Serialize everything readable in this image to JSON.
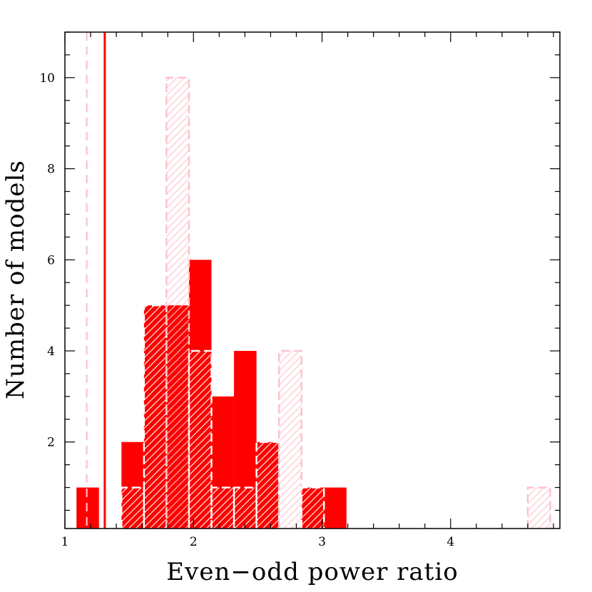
{
  "chart_data": {
    "type": "bar",
    "title": "",
    "xlabel": "Even−odd power ratio",
    "ylabel": "Number of models",
    "xlim": [
      1.0,
      4.85
    ],
    "ylim": [
      0.1,
      11.0
    ],
    "x_ticks": [
      1,
      2,
      3,
      4
    ],
    "y_ticks": [
      2,
      4,
      6,
      8,
      10
    ],
    "grid": false,
    "legend": "none",
    "colors": {
      "solid": "#ff0000",
      "hatched": "#ffc0cb",
      "hatched_overlay": "#ffffff"
    },
    "vlines": [
      {
        "x": 1.17,
        "style": "dashed",
        "color": "#ffc0cb"
      },
      {
        "x": 1.31,
        "style": "solid",
        "color": "#ff0000"
      }
    ],
    "series": [
      {
        "style": "solid",
        "bins": [
          {
            "x0": 1.09,
            "x1": 1.265,
            "value": 1
          },
          {
            "x0": 1.44,
            "x1": 1.615,
            "value": 2
          },
          {
            "x0": 1.615,
            "x1": 1.79,
            "value": 5
          },
          {
            "x0": 1.79,
            "x1": 1.965,
            "value": 5
          },
          {
            "x0": 1.965,
            "x1": 2.14,
            "value": 6
          },
          {
            "x0": 2.14,
            "x1": 2.315,
            "value": 3
          },
          {
            "x0": 2.315,
            "x1": 2.49,
            "value": 4
          },
          {
            "x0": 2.49,
            "x1": 2.665,
            "value": 2
          },
          {
            "x0": 2.84,
            "x1": 3.015,
            "value": 1
          },
          {
            "x0": 3.015,
            "x1": 3.19,
            "value": 1
          }
        ]
      },
      {
        "style": "hatched-dashed",
        "bins": [
          {
            "x0": 1.44,
            "x1": 1.615,
            "value": 1
          },
          {
            "x0": 1.615,
            "x1": 1.79,
            "value": 5
          },
          {
            "x0": 1.79,
            "x1": 1.965,
            "value": 10
          },
          {
            "x0": 1.965,
            "x1": 2.14,
            "value": 4
          },
          {
            "x0": 2.14,
            "x1": 2.315,
            "value": 1
          },
          {
            "x0": 2.315,
            "x1": 2.49,
            "value": 1
          },
          {
            "x0": 2.49,
            "x1": 2.665,
            "value": 2
          },
          {
            "x0": 2.665,
            "x1": 2.84,
            "value": 4
          },
          {
            "x0": 2.84,
            "x1": 3.015,
            "value": 1
          },
          {
            "x0": 4.6,
            "x1": 4.775,
            "value": 1
          }
        ]
      }
    ]
  }
}
